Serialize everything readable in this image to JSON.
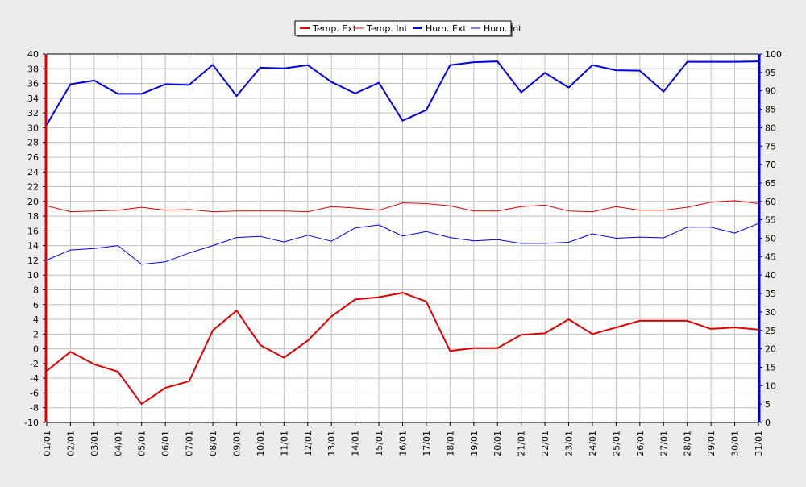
{
  "chart_data": {
    "type": "line",
    "categories": [
      "01/01",
      "02/01",
      "03/01",
      "04/01",
      "05/01",
      "06/01",
      "07/01",
      "08/01",
      "09/01",
      "10/01",
      "11/01",
      "12/01",
      "13/01",
      "14/01",
      "15/01",
      "16/01",
      "17/01",
      "18/01",
      "19/01",
      "20/01",
      "21/01",
      "22/01",
      "23/01",
      "24/01",
      "25/01",
      "26/01",
      "27/01",
      "28/01",
      "29/01",
      "30/01",
      "31/01"
    ],
    "y_left": {
      "ylim": [
        -10,
        40
      ],
      "ticks": [
        -10,
        -8,
        -6,
        -4,
        -2,
        0,
        2,
        4,
        6,
        8,
        10,
        12,
        14,
        16,
        18,
        20,
        22,
        24,
        26,
        28,
        30,
        32,
        34,
        36,
        38,
        40
      ]
    },
    "y_right": {
      "ylim": [
        0,
        100
      ],
      "ticks": [
        0,
        5,
        10,
        15,
        20,
        25,
        30,
        35,
        40,
        45,
        50,
        55,
        60,
        65,
        70,
        75,
        80,
        85,
        90,
        95,
        100
      ]
    },
    "grid": true,
    "legend_position": "top-center",
    "series": [
      {
        "name": "Temp. Ext",
        "axis": "left",
        "color": "#e00000",
        "bold": true,
        "values": [
          -3.0,
          -0.4,
          -2.1,
          -3.1,
          -7.5,
          -5.3,
          -4.4,
          2.5,
          5.2,
          0.5,
          -1.2,
          1.1,
          4.4,
          6.7,
          7.0,
          7.6,
          6.4,
          -0.3,
          0.1,
          0.1,
          1.9,
          2.1,
          4.0,
          2.0,
          2.9,
          3.8,
          3.8,
          3.8,
          2.7,
          2.9,
          2.6
        ]
      },
      {
        "name": "Temp. Int",
        "axis": "left",
        "color": "#e00000",
        "bold": false,
        "values": [
          19.4,
          18.6,
          18.7,
          18.8,
          19.2,
          18.8,
          18.9,
          18.6,
          18.7,
          18.7,
          18.7,
          18.6,
          19.3,
          19.1,
          18.8,
          19.8,
          19.7,
          19.4,
          18.7,
          18.7,
          19.3,
          19.5,
          18.7,
          18.6,
          19.3,
          18.8,
          18.8,
          19.2,
          19.9,
          20.1,
          19.7
        ]
      },
      {
        "name": "Hum. Ext",
        "axis": "right",
        "color": "#0000e0",
        "bold": true,
        "values": [
          80.8,
          91.8,
          92.8,
          89.2,
          89.2,
          91.8,
          91.6,
          97.1,
          88.6,
          96.3,
          96.1,
          97.0,
          92.4,
          89.3,
          92.2,
          81.9,
          84.8,
          97.0,
          97.8,
          98.0,
          89.6,
          94.9,
          90.9,
          97.0,
          95.6,
          95.5,
          89.8,
          97.9,
          97.9,
          97.9,
          98.0
        ]
      },
      {
        "name": "Hum. Int",
        "axis": "right",
        "color": "#0000e0",
        "bold": false,
        "values": [
          44.1,
          46.8,
          47.2,
          48.0,
          42.9,
          43.6,
          46.0,
          48.0,
          50.2,
          50.5,
          49.0,
          50.8,
          49.2,
          52.8,
          53.6,
          50.6,
          51.8,
          50.2,
          49.3,
          49.6,
          48.6,
          48.6,
          48.9,
          51.2,
          50.0,
          50.3,
          50.1,
          53.0,
          53.0,
          51.4,
          54.0
        ]
      }
    ]
  }
}
